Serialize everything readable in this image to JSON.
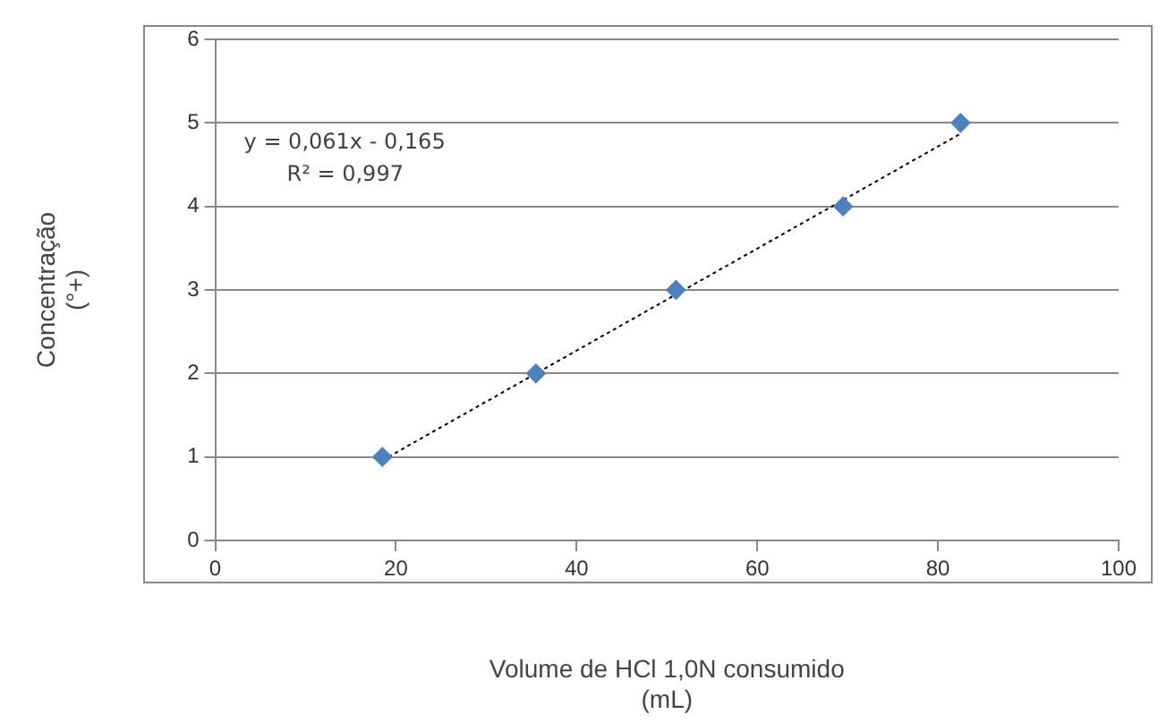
{
  "chart_data": {
    "type": "scatter",
    "xlabel": "Volume de HCl 1,0N consumido (mL)",
    "ylabel": "Concentração (°+)",
    "xlim": [
      0,
      100
    ],
    "xticks": [
      0,
      20,
      40,
      60,
      80,
      100
    ],
    "ylim": [
      0,
      6
    ],
    "yticks": [
      0,
      1,
      2,
      3,
      4,
      5,
      6
    ],
    "grid": "y",
    "legend": false,
    "marker": "diamond",
    "series": [
      {
        "color": "#4f81bd",
        "x": [
          18.5,
          35.5,
          51,
          69.5,
          82.5
        ],
        "values": [
          1,
          2,
          3,
          4,
          5
        ]
      },
      {
        "type": "line",
        "color": "#000000",
        "line_style": "dotted",
        "marker": "none",
        "x": [
          18.5,
          82.5
        ],
        "values": [
          0.96,
          4.87
        ]
      }
    ],
    "annotations": [
      "y = 0,061x - 0,165",
      "R² = 0,997"
    ]
  }
}
